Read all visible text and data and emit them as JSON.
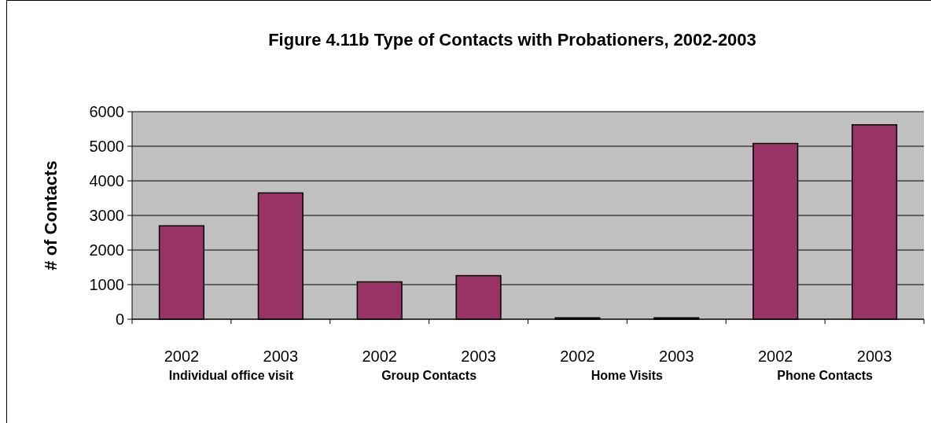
{
  "chart_data": {
    "type": "bar",
    "title": "Figure 4.11b Type of Contacts with Probationers, 2002-2003",
    "ylabel": "# of Contacts",
    "categories": [
      "2002",
      "2003",
      "2002",
      "2003",
      "2002",
      "2003",
      "2002",
      "2003"
    ],
    "annotations": [
      "Individual office visit",
      "Group Contacts",
      "Home Visits",
      "Phone Contacts"
    ],
    "series": [
      {
        "color": "#993366",
        "values": [
          2700,
          3650,
          1080,
          1260,
          40,
          40,
          5080,
          5620
        ]
      }
    ],
    "ylim": [
      0,
      6000
    ],
    "yticks": [
      0,
      1000,
      2000,
      3000,
      4000,
      5000,
      6000
    ],
    "grid": "y"
  }
}
